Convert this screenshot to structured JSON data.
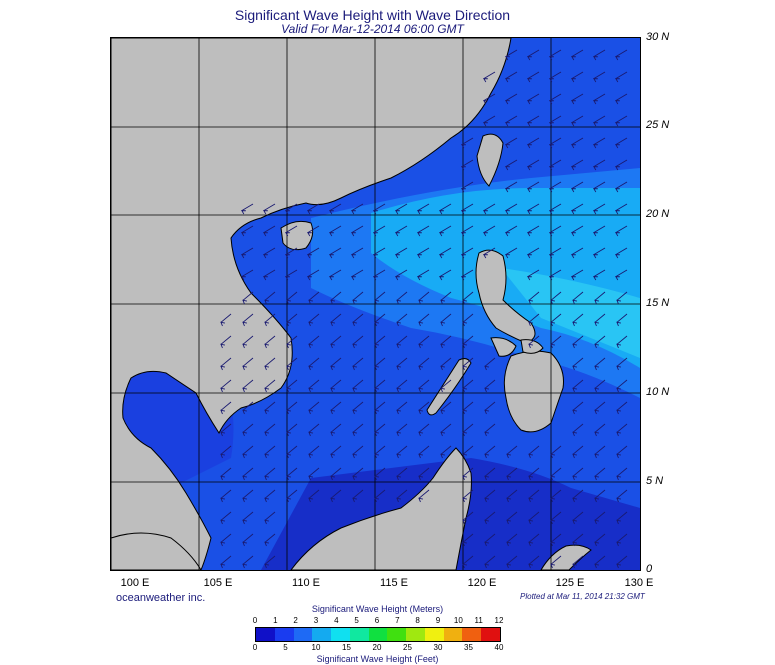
{
  "title": "Significant Wave Height with Wave Direction",
  "subtitle": "Valid For Mar-12-2014 06:00 GMT",
  "lat_labels": [
    "30 N",
    "25 N",
    "20 N",
    "15 N",
    "10 N",
    "5 N",
    "0"
  ],
  "lon_labels": [
    "100 E",
    "105 E",
    "110 E",
    "115 E",
    "120 E",
    "125 E",
    "130 E"
  ],
  "credit": "oceanweather inc.",
  "plotted": "Plotted at Mar 11, 2014 21:32 GMT",
  "colorbar": {
    "meters_title": "Significant Wave Height (Meters)",
    "feet_title": "Significant Wave Height (Feet)",
    "meters_ticks": [
      "0",
      "1",
      "2",
      "3",
      "4",
      "5",
      "6",
      "7",
      "8",
      "9",
      "10",
      "11",
      "12"
    ],
    "feet_ticks": [
      "0",
      "5",
      "10",
      "15",
      "20",
      "25",
      "30",
      "35",
      "40"
    ],
    "colors": [
      "#1010c8",
      "#1a3cf0",
      "#1e6af5",
      "#14aaf0",
      "#10e0f0",
      "#10e8a0",
      "#10e040",
      "#40e010",
      "#a0e810",
      "#f0f010",
      "#f0b010",
      "#f06010",
      "#e01010"
    ]
  },
  "map_colors": {
    "land": "#bebebe",
    "ocean_light": "#18b4f4",
    "ocean_mid": "#1e7cf4",
    "ocean_base": "#1a50e6",
    "ocean_deep": "#1626c0",
    "ocean_dark": "#0a0a6e"
  },
  "wave_direction": "from northeast (arrows pointing southwest)"
}
